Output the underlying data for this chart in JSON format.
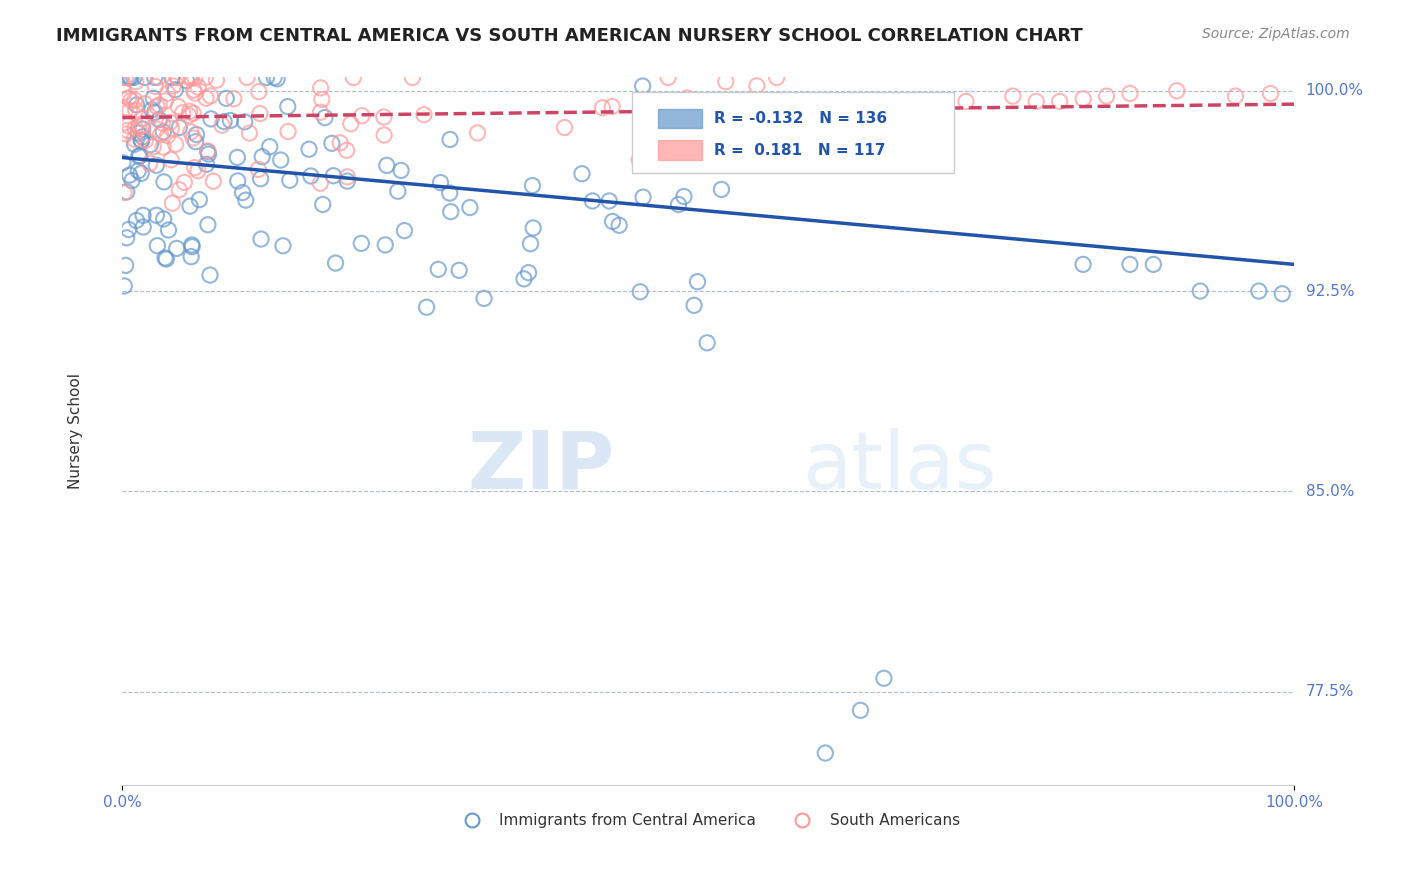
{
  "title": "IMMIGRANTS FROM CENTRAL AMERICA VS SOUTH AMERICAN NURSERY SCHOOL CORRELATION CHART",
  "source": "Source: ZipAtlas.com",
  "xlabel": "",
  "ylabel": "Nursery School",
  "xlim": [
    0.0,
    1.0
  ],
  "ylim": [
    0.74,
    1.005
  ],
  "yticks": [
    0.775,
    0.85,
    0.925,
    1.0
  ],
  "ytick_labels": [
    "77.5%",
    "85.0%",
    "92.5%",
    "100.0%"
  ],
  "blue_color": "#6699cc",
  "pink_color": "#ff9999",
  "blue_line_color": "#2255aa",
  "pink_line_color": "#cc4466",
  "R_blue": -0.132,
  "N_blue": 136,
  "R_pink": 0.181,
  "N_pink": 117,
  "legend_label_blue": "Immigrants from Central America",
  "legend_label_pink": "South Americans",
  "watermark_zip": "ZIP",
  "watermark_atlas": "atlas",
  "background_color": "#ffffff",
  "title_fontsize": 13,
  "axis_label_color": "#5577cc"
}
